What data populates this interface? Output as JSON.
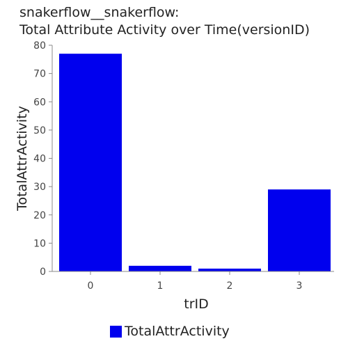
{
  "chart_data": {
    "type": "bar",
    "title_line1": "snakerflow__snakerflow:",
    "title_line2": "Total Attribute Activity over Time(versionID)",
    "xlabel": "trID",
    "ylabel": "TotalAttrActivity",
    "categories": [
      "0",
      "1",
      "2",
      "3"
    ],
    "series": [
      {
        "name": "TotalAttrActivity",
        "values": [
          77,
          2,
          1,
          29
        ],
        "color": "#0000ee"
      }
    ],
    "ylim": [
      0,
      80
    ],
    "yticks": [
      0,
      10,
      20,
      30,
      40,
      50,
      60,
      70,
      80
    ],
    "grid": false,
    "legend_position": "bottom"
  }
}
